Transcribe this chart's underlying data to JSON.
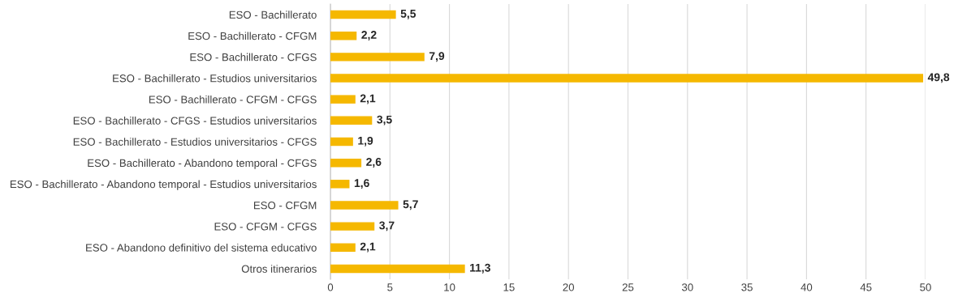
{
  "chart_data": {
    "type": "bar",
    "orientation": "horizontal",
    "categories": [
      "ESO - Bachillerato",
      "ESO - Bachillerato - CFGM",
      "ESO - Bachillerato - CFGS",
      "ESO - Bachillerato - Estudios universitarios",
      "ESO - Bachillerato - CFGM - CFGS",
      "ESO - Bachillerato - CFGS - Estudios universitarios",
      "ESO - Bachillerato - Estudios universitarios - CFGS",
      "ESO - Bachillerato - Abandono temporal - CFGS",
      "ESO - Bachillerato - Abandono temporal - Estudios universitarios",
      "ESO - CFGM",
      "ESO - CFGM - CFGS",
      "ESO - Abandono definitivo del sistema educativo",
      "Otros itinerarios"
    ],
    "values": [
      5.5,
      2.2,
      7.9,
      49.8,
      2.1,
      3.5,
      1.9,
      2.6,
      1.6,
      5.7,
      3.7,
      2.1,
      11.3
    ],
    "value_labels": [
      "5,5",
      "2,2",
      "7,9",
      "49,8",
      "2,1",
      "3,5",
      "1,9",
      "2,6",
      "1,6",
      "5,7",
      "3,7",
      "2,1",
      "11,3"
    ],
    "color": "#f5b800",
    "xlim": [
      0,
      50
    ],
    "xticks": [
      0,
      5,
      10,
      15,
      20,
      25,
      30,
      35,
      40,
      45,
      50
    ],
    "grid": "x",
    "legend": false
  }
}
